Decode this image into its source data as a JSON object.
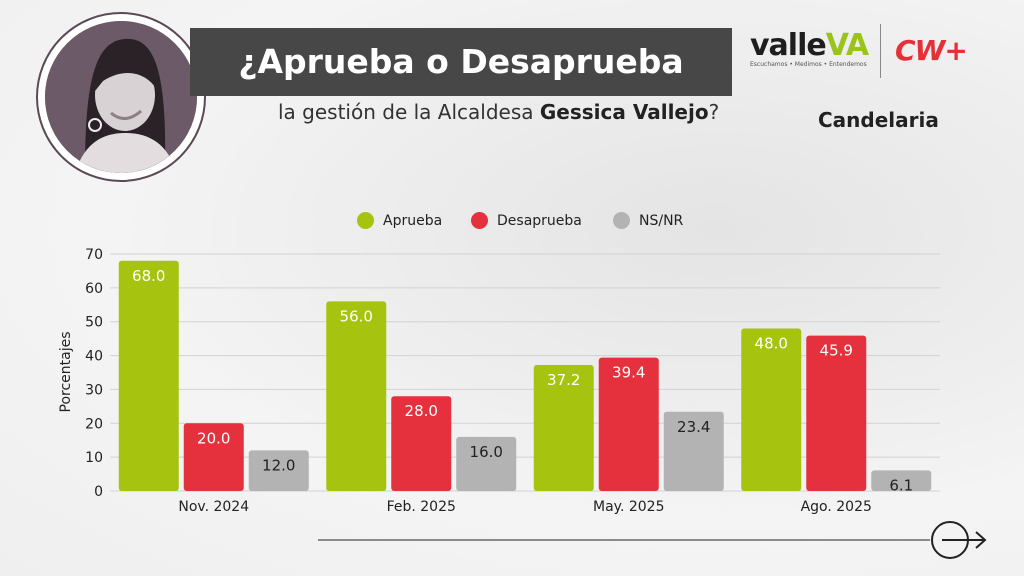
{
  "header": {
    "title": "¿Aprueba o Desaprueba",
    "subtitle_prefix": "la gestión de la Alcaldesa ",
    "subtitle_name": "Gessica Vallejo",
    "subtitle_suffix": "?",
    "region": "Candelaria"
  },
  "logos": {
    "valle_main": "valle",
    "valle_accent": "VA",
    "valle_tagline": "Escuchamos • Medimos • Entendemos",
    "cw": "CW+"
  },
  "colors": {
    "aprueba": "#a5c30f",
    "desaprueba": "#e5313d",
    "nsnr": "#b3b3b3",
    "title_bar": "#474747"
  },
  "chart_data": {
    "type": "bar",
    "categories": [
      "Nov. 2024",
      "Feb. 2025",
      "May. 2025",
      "Ago. 2025"
    ],
    "series": [
      {
        "name": "Aprueba",
        "values": [
          68.0,
          56.0,
          37.2,
          48.0
        ]
      },
      {
        "name": "Desaprueba",
        "values": [
          20.0,
          28.0,
          39.4,
          45.9
        ]
      },
      {
        "name": "NS/NR",
        "values": [
          12.0,
          16.0,
          23.4,
          6.1
        ]
      }
    ],
    "title": "",
    "xlabel": "",
    "ylabel": "Porcentajes",
    "ylim": [
      0,
      70
    ],
    "yticks": [
      0,
      10,
      20,
      30,
      40,
      50,
      60,
      70
    ],
    "grid": true,
    "legend": "top-center"
  }
}
